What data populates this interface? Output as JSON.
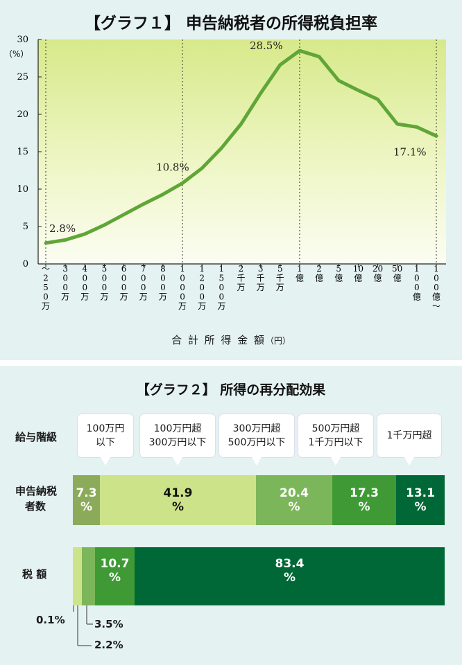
{
  "chart1": {
    "title": "【グラフ１】 申告納税者の所得税負担率",
    "y_unit": "（%）",
    "x_axis_title": "合 計 所 得 金 額",
    "x_axis_unit": "（円）",
    "y_ticks": [
      "0",
      "5",
      "10",
      "15",
      "20",
      "25",
      "30"
    ],
    "x_tick_labels": [
      "～250万",
      "300万",
      "400万",
      "500万",
      "600万",
      "700万",
      "800万",
      "1000万",
      "1200万",
      "1500万",
      "2千万",
      "3千万",
      "5千万",
      "1億",
      "2億",
      "5億",
      "10億",
      "20億",
      "50億",
      "100億",
      "100億～"
    ],
    "annotations": [
      {
        "text": "2.8%",
        "index": 0
      },
      {
        "text": "10.8%",
        "index": 7
      },
      {
        "text": "28.5%",
        "index": 13
      },
      {
        "text": "17.1%",
        "index": 20
      }
    ],
    "colors": {
      "line": "#5fa637",
      "bg_top": "#d8e98c",
      "bg_bottom": "#fbfdf0"
    }
  },
  "chart_data": [
    {
      "type": "line",
      "title": "【グラフ１】 申告納税者の所得税負担率",
      "xlabel": "合計所得金額（円）",
      "ylabel": "（%）",
      "ylim": [
        0,
        30
      ],
      "categories": [
        "～250万",
        "300万",
        "400万",
        "500万",
        "600万",
        "700万",
        "800万",
        "1000万",
        "1200万",
        "1500万",
        "2千万",
        "3千万",
        "5千万",
        "1億",
        "2億",
        "5億",
        "10億",
        "20億",
        "50億",
        "100億",
        "100億～"
      ],
      "values": [
        2.8,
        3.2,
        4.0,
        5.2,
        6.6,
        8.0,
        9.3,
        10.8,
        12.8,
        15.5,
        18.7,
        22.8,
        26.6,
        28.5,
        27.7,
        24.5,
        23.2,
        22.0,
        18.7,
        18.3,
        17.1
      ],
      "grid": "vertical dotted lines at ～250万, 1000万, 1億, 100億～"
    },
    {
      "type": "bar",
      "title": "【グラフ２】 所得の再分配効果",
      "stacked": true,
      "orientation": "horizontal",
      "header_label": "給与階級",
      "categories": [
        "申告納税者数",
        "税額"
      ],
      "series": [
        {
          "name": "100万円以下",
          "values": [
            7.3,
            0.1
          ]
        },
        {
          "name": "100万円超300万円以下",
          "values": [
            41.9,
            2.2
          ]
        },
        {
          "name": "300万円超500万円以下",
          "values": [
            20.4,
            3.5
          ]
        },
        {
          "name": "500万円超1千万円以下",
          "values": [
            17.3,
            10.7
          ]
        },
        {
          "name": "1千万円超",
          "values": [
            13.1,
            83.4
          ]
        }
      ]
    }
  ],
  "chart2": {
    "title": "【グラフ２】 所得の再分配効果",
    "header_label": "給与階級",
    "callouts": [
      {
        "line1": "100万円",
        "line2": "以下"
      },
      {
        "line1": "100万円超",
        "line2": "300万円以下"
      },
      {
        "line1": "300万円超",
        "line2": "500万円以下"
      },
      {
        "line1": "500万円超",
        "line2": "1千万円以下"
      },
      {
        "line1": "1千万円超",
        "line2": ""
      }
    ],
    "row1_label_line1": "申告納税",
    "row1_label_line2": "者数",
    "row2_label": "税 額",
    "row1": [
      {
        "value": "7.3",
        "unit": "%",
        "color": "#8bab5a"
      },
      {
        "value": "41.9",
        "unit": "%",
        "color": "#cde38a"
      },
      {
        "value": "20.4",
        "unit": "%",
        "color": "#7cb65a"
      },
      {
        "value": "17.3",
        "unit": "%",
        "color": "#3f9a36"
      },
      {
        "value": "13.1",
        "unit": "%",
        "color": "#006837"
      }
    ],
    "row2": [
      {
        "value": "0.1%",
        "color": "#cde38a"
      },
      {
        "value": "2.2%",
        "color": "#cde38a"
      },
      {
        "value": "3.5%",
        "color": "#7cb65a"
      },
      {
        "value": "10.7",
        "unit": "%",
        "color": "#3f9a36"
      },
      {
        "value": "83.4",
        "unit": "%",
        "color": "#006837"
      }
    ]
  }
}
